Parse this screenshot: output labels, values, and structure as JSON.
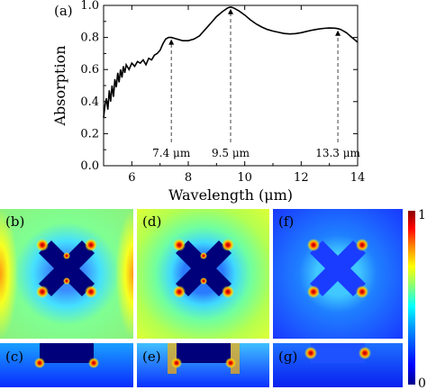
{
  "chart_data": [
    {
      "type": "line",
      "panel_label": "(a)",
      "xlabel": "Wavelength (μm)",
      "ylabel": "Absorption",
      "xlim": [
        5,
        14
      ],
      "ylim": [
        0,
        1.0
      ],
      "xticks": [
        6,
        8,
        10,
        12,
        14
      ],
      "xtick_labels": [
        "6",
        "8",
        "10",
        "12",
        "14"
      ],
      "yticks": [
        0.0,
        0.2,
        0.4,
        0.6,
        0.8,
        1.0
      ],
      "ytick_labels": [
        "0.0",
        "0.2",
        "0.4",
        "0.6",
        "0.8",
        "1.0"
      ],
      "grid": false,
      "x": [
        5.0,
        5.05,
        5.1,
        5.15,
        5.2,
        5.25,
        5.3,
        5.35,
        5.4,
        5.45,
        5.5,
        5.55,
        5.6,
        5.65,
        5.7,
        5.75,
        5.8,
        5.9,
        6.0,
        6.1,
        6.2,
        6.3,
        6.4,
        6.5,
        6.6,
        6.7,
        6.8,
        6.9,
        7.0,
        7.1,
        7.2,
        7.3,
        7.4,
        7.6,
        7.8,
        8.0,
        8.2,
        8.4,
        8.6,
        8.8,
        9.0,
        9.2,
        9.4,
        9.5,
        9.6,
        9.8,
        10.0,
        10.2,
        10.4,
        10.6,
        10.8,
        11.0,
        11.2,
        11.4,
        11.6,
        11.8,
        12.0,
        12.2,
        12.4,
        12.6,
        12.8,
        13.0,
        13.2,
        13.3,
        13.4,
        13.6,
        13.8,
        14.0
      ],
      "values": [
        0.3,
        0.38,
        0.42,
        0.35,
        0.47,
        0.4,
        0.5,
        0.43,
        0.54,
        0.49,
        0.58,
        0.52,
        0.6,
        0.55,
        0.62,
        0.58,
        0.63,
        0.6,
        0.64,
        0.62,
        0.65,
        0.64,
        0.66,
        0.63,
        0.67,
        0.66,
        0.69,
        0.7,
        0.72,
        0.76,
        0.79,
        0.8,
        0.8,
        0.79,
        0.78,
        0.78,
        0.79,
        0.81,
        0.85,
        0.89,
        0.93,
        0.96,
        0.985,
        0.99,
        0.985,
        0.965,
        0.94,
        0.91,
        0.885,
        0.865,
        0.85,
        0.84,
        0.832,
        0.825,
        0.822,
        0.824,
        0.83,
        0.838,
        0.846,
        0.852,
        0.857,
        0.859,
        0.858,
        0.855,
        0.85,
        0.83,
        0.8,
        0.77
      ],
      "annotations": [
        {
          "x": 7.4,
          "y": 0.8,
          "label": "7.4 μm"
        },
        {
          "x": 9.5,
          "y": 0.99,
          "label": "9.5 μm"
        },
        {
          "x": 13.3,
          "y": 0.855,
          "label": "13.3 μm"
        }
      ]
    },
    {
      "type": "heatmap",
      "panels": [
        {
          "label": "(b)"
        },
        {
          "label": "(d)"
        },
        {
          "label": "(f)"
        },
        {
          "label": "(c)"
        },
        {
          "label": "(e)"
        },
        {
          "label": "(g)"
        }
      ],
      "colorbar": {
        "max_label": "1",
        "min_label": "0",
        "range": [
          0,
          1
        ]
      }
    }
  ],
  "colors": {
    "curve": "#000000",
    "colormap": [
      "#00008b",
      "#0000ff",
      "#0080ff",
      "#00ffff",
      "#80ff80",
      "#ffff00",
      "#ff8000",
      "#ff0000",
      "#8b0000"
    ]
  }
}
